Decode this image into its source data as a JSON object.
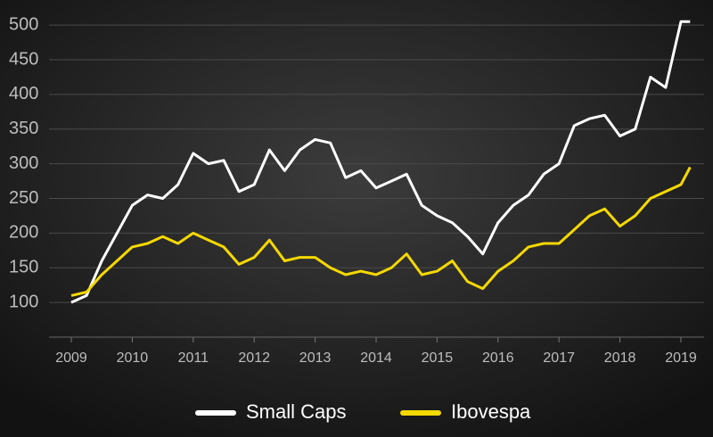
{
  "chart_data": {
    "type": "line",
    "x": [
      2009.0,
      2009.25,
      2009.5,
      2009.75,
      2010.0,
      2010.25,
      2010.5,
      2010.75,
      2011.0,
      2011.25,
      2011.5,
      2011.75,
      2012.0,
      2012.25,
      2012.5,
      2012.75,
      2013.0,
      2013.25,
      2013.5,
      2013.75,
      2014.0,
      2014.25,
      2014.5,
      2014.75,
      2015.0,
      2015.25,
      2015.5,
      2015.75,
      2016.0,
      2016.25,
      2016.5,
      2016.75,
      2017.0,
      2017.25,
      2017.5,
      2017.75,
      2018.0,
      2018.25,
      2018.5,
      2018.75,
      2019.0,
      2019.15
    ],
    "series": [
      {
        "name": "Small Caps",
        "color": "#ffffff",
        "values": [
          100,
          110,
          160,
          200,
          240,
          255,
          250,
          270,
          315,
          300,
          305,
          260,
          270,
          320,
          290,
          320,
          335,
          330,
          280,
          290,
          265,
          275,
          285,
          240,
          225,
          215,
          195,
          170,
          215,
          240,
          255,
          285,
          300,
          355,
          365,
          370,
          340,
          350,
          425,
          410,
          505,
          505
        ]
      },
      {
        "name": "Ibovespa",
        "color": "#f5d800",
        "values": [
          110,
          115,
          140,
          160,
          180,
          185,
          195,
          185,
          200,
          190,
          180,
          155,
          165,
          190,
          160,
          165,
          165,
          150,
          140,
          145,
          140,
          150,
          170,
          140,
          145,
          160,
          130,
          120,
          145,
          160,
          180,
          185,
          185,
          205,
          225,
          235,
          210,
          225,
          250,
          260,
          270,
          295
        ]
      }
    ],
    "xlim": [
      2009,
      2019
    ],
    "xticks": [
      2009,
      2010,
      2011,
      2012,
      2013,
      2014,
      2015,
      2016,
      2017,
      2018,
      2019
    ],
    "ylim": [
      50,
      520
    ],
    "yticks": [
      100,
      150,
      200,
      250,
      300,
      350,
      400,
      450,
      500
    ],
    "grid": true,
    "legend": "bottom"
  }
}
